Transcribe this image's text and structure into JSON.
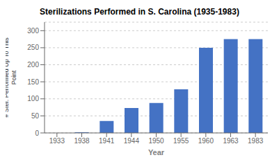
{
  "chart_data": {
    "type": "bar",
    "title": "Sterilizations Performed in S. Carolina (1935-1983)",
    "xlabel": "Year",
    "ylabel": "# Ster. Performed Up To This\nPoint",
    "categories": [
      "1933",
      "1938",
      "1941",
      "1944",
      "1950",
      "1955",
      "1960",
      "1963",
      "1983"
    ],
    "values": [
      0,
      2,
      35,
      73,
      88,
      128,
      250,
      275,
      275
    ],
    "color": "#4472C4",
    "ylim": [
      0,
      325
    ],
    "yticks": [
      0,
      50,
      100,
      150,
      200,
      250,
      300
    ],
    "grid": true
  }
}
